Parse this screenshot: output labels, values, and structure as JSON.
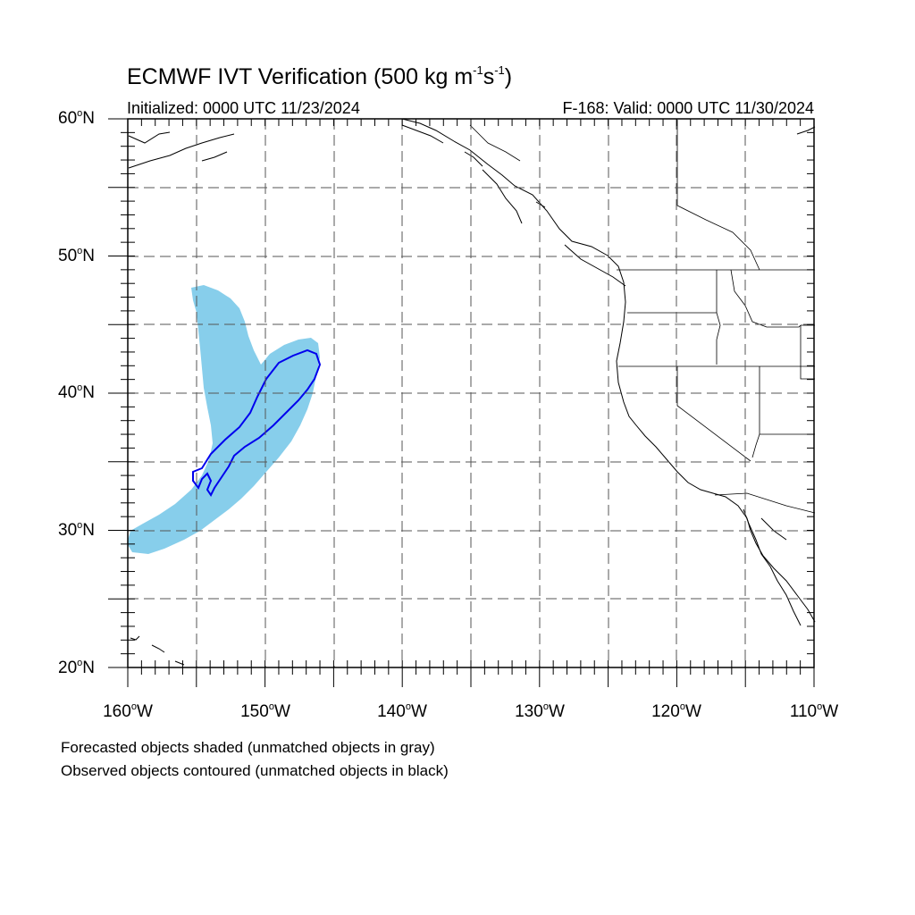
{
  "header": {
    "title_main": "ECMWF IVT Verification (500 kg m",
    "title_exp1": "-1",
    "title_mid": "s",
    "title_exp2": "-1",
    "title_end": ")",
    "initialized": "Initialized: 0000 UTC 11/23/2024",
    "valid": "F-168: Valid: 0000 UTC 11/30/2024"
  },
  "axes": {
    "lat_labels": [
      {
        "num": "60",
        "hemi": "N"
      },
      {
        "num": "50",
        "hemi": "N"
      },
      {
        "num": "40",
        "hemi": "N"
      },
      {
        "num": "30",
        "hemi": "N"
      },
      {
        "num": "20",
        "hemi": "N"
      }
    ],
    "lon_labels": [
      {
        "num": "160",
        "hemi": "W"
      },
      {
        "num": "150",
        "hemi": "W"
      },
      {
        "num": "140",
        "hemi": "W"
      },
      {
        "num": "130",
        "hemi": "W"
      },
      {
        "num": "120",
        "hemi": "W"
      },
      {
        "num": "110",
        "hemi": "W"
      }
    ],
    "lat_range": [
      20,
      60
    ],
    "lon_range": [
      -160,
      -110
    ],
    "grid_interval_deg": 5
  },
  "legend": {
    "line1": "Forecasted objects shaded (unmatched objects in gray)",
    "line2": "Observed objects contoured (unmatched objects in black)"
  },
  "colors": {
    "forecast_fill": "#87ceeb",
    "observed_contour": "#0000ee",
    "coastline": "#000000",
    "grid": "#555555"
  }
}
